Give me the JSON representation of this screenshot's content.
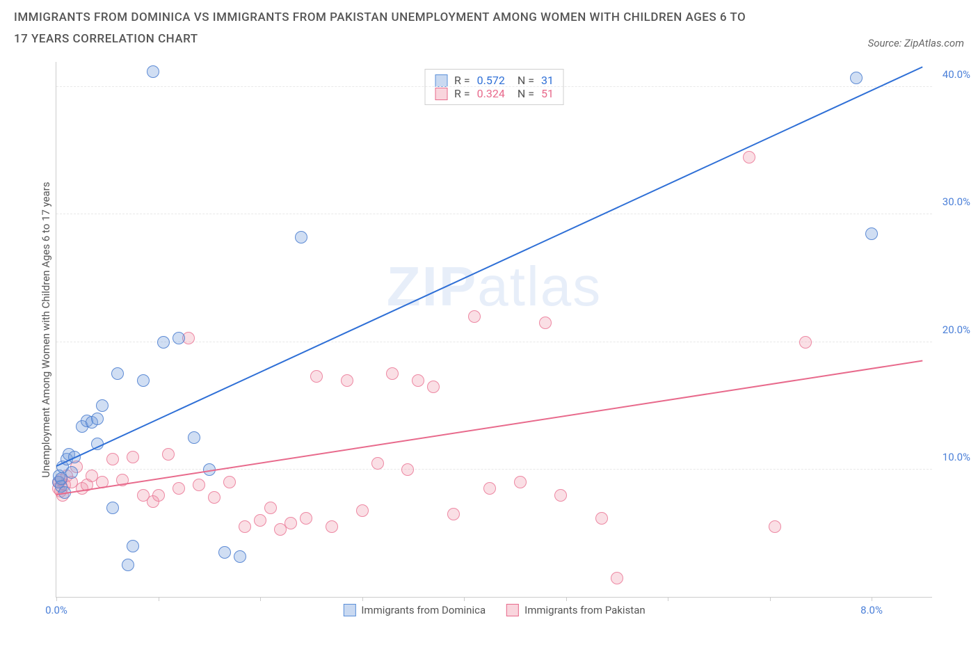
{
  "title": "IMMIGRANTS FROM DOMINICA VS IMMIGRANTS FROM PAKISTAN UNEMPLOYMENT AMONG WOMEN WITH CHILDREN AGES 6 TO 17 YEARS CORRELATION CHART",
  "source": "Source: ZipAtlas.com",
  "ylabel": "Unemployment Among Women with Children Ages 6 to 17 years",
  "watermark_a": "ZIP",
  "watermark_b": "atlas",
  "chart": {
    "type": "scatter",
    "xlim": [
      0,
      8.6
    ],
    "ylim": [
      0,
      42
    ],
    "xticks": [
      0,
      1,
      2,
      3,
      4,
      5,
      6,
      7,
      8
    ],
    "xtick_labels": {
      "0": "0.0%",
      "8": "8.0%"
    },
    "yticks": [
      10,
      20,
      30,
      40
    ],
    "ytick_labels": [
      "10.0%",
      "20.0%",
      "30.0%",
      "40.0%"
    ],
    "colors": {
      "blue_fill": "rgba(120,160,220,0.35)",
      "blue_stroke": "#5a8fd8",
      "blue_line": "#2e6fd6",
      "pink_fill": "rgba(240,150,170,0.3)",
      "pink_stroke": "#e86a8c",
      "pink_line": "#e86a8c",
      "axis_text": "#4a7fd8",
      "grid": "#e8e8e8",
      "background": "#ffffff"
    },
    "series": [
      {
        "name": "Immigrants from Dominica",
        "key": "blue",
        "R": "0.572",
        "N": "31",
        "trend": {
          "x1": 0,
          "y1": 10.2,
          "x2": 8.5,
          "y2": 41.5
        },
        "points": [
          [
            0.02,
            9.0
          ],
          [
            0.03,
            9.5
          ],
          [
            0.05,
            8.7
          ],
          [
            0.05,
            9.3
          ],
          [
            0.06,
            10.2
          ],
          [
            0.08,
            8.2
          ],
          [
            0.1,
            10.8
          ],
          [
            0.12,
            11.2
          ],
          [
            0.15,
            9.8
          ],
          [
            0.18,
            11.0
          ],
          [
            0.25,
            13.4
          ],
          [
            0.3,
            13.8
          ],
          [
            0.35,
            13.7
          ],
          [
            0.4,
            14.0
          ],
          [
            0.4,
            12.0
          ],
          [
            0.45,
            15.0
          ],
          [
            0.55,
            7.0
          ],
          [
            0.6,
            17.5
          ],
          [
            0.7,
            2.5
          ],
          [
            0.75,
            4.0
          ],
          [
            0.85,
            17.0
          ],
          [
            0.95,
            41.2
          ],
          [
            1.05,
            20.0
          ],
          [
            1.2,
            20.3
          ],
          [
            1.35,
            12.5
          ],
          [
            1.5,
            10.0
          ],
          [
            1.65,
            3.5
          ],
          [
            1.8,
            3.2
          ],
          [
            2.4,
            28.2
          ],
          [
            7.85,
            40.7
          ],
          [
            8.0,
            28.5
          ]
        ]
      },
      {
        "name": "Immigrants from Pakistan",
        "key": "pink",
        "R": "0.324",
        "N": "51",
        "trend": {
          "x1": 0,
          "y1": 8.0,
          "x2": 8.5,
          "y2": 18.5
        },
        "points": [
          [
            0.02,
            8.5
          ],
          [
            0.03,
            9.0
          ],
          [
            0.04,
            8.3
          ],
          [
            0.05,
            9.2
          ],
          [
            0.06,
            8.0
          ],
          [
            0.08,
            8.8
          ],
          [
            0.1,
            9.5
          ],
          [
            0.15,
            9.0
          ],
          [
            0.2,
            10.2
          ],
          [
            0.25,
            8.5
          ],
          [
            0.3,
            8.8
          ],
          [
            0.35,
            9.5
          ],
          [
            0.45,
            9.0
          ],
          [
            0.55,
            10.8
          ],
          [
            0.65,
            9.2
          ],
          [
            0.75,
            11.0
          ],
          [
            0.85,
            8.0
          ],
          [
            0.95,
            7.5
          ],
          [
            1.0,
            8.0
          ],
          [
            1.1,
            11.2
          ],
          [
            1.2,
            8.5
          ],
          [
            1.3,
            20.3
          ],
          [
            1.4,
            8.8
          ],
          [
            1.55,
            7.8
          ],
          [
            1.7,
            9.0
          ],
          [
            1.85,
            5.5
          ],
          [
            2.0,
            6.0
          ],
          [
            2.1,
            7.0
          ],
          [
            2.2,
            5.3
          ],
          [
            2.3,
            5.8
          ],
          [
            2.45,
            6.2
          ],
          [
            2.55,
            17.3
          ],
          [
            2.7,
            5.5
          ],
          [
            2.85,
            17.0
          ],
          [
            3.0,
            6.8
          ],
          [
            3.15,
            10.5
          ],
          [
            3.3,
            17.5
          ],
          [
            3.45,
            10.0
          ],
          [
            3.55,
            17.0
          ],
          [
            3.7,
            16.5
          ],
          [
            3.9,
            6.5
          ],
          [
            4.1,
            22.0
          ],
          [
            4.25,
            8.5
          ],
          [
            4.55,
            9.0
          ],
          [
            4.8,
            21.5
          ],
          [
            4.95,
            8.0
          ],
          [
            5.35,
            6.2
          ],
          [
            5.5,
            1.5
          ],
          [
            6.8,
            34.5
          ],
          [
            7.35,
            20.0
          ],
          [
            7.05,
            5.5
          ]
        ]
      }
    ]
  }
}
